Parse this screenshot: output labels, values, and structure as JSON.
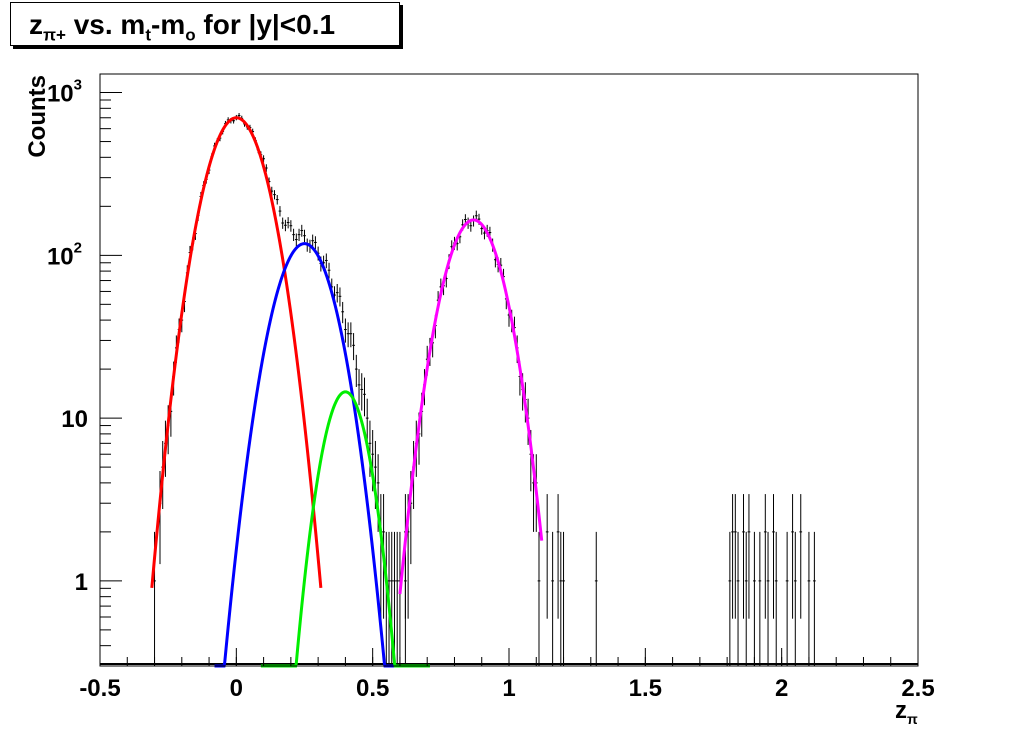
{
  "chart_data": {
    "type": "line",
    "title_parts": {
      "z": "z",
      "z_sub": "π+",
      "vs": " vs. m",
      "t_sub": "t",
      "dash": "-m",
      "o_sub": "o",
      "rest": " for |y|<0.1"
    },
    "xlabel": "z",
    "xlabel_sub": "π",
    "ylabel": "Counts",
    "xlim": [
      -0.5,
      2.5
    ],
    "ylim": [
      0.3,
      1300
    ],
    "yscale": "log",
    "x_ticks": [
      {
        "v": -0.5,
        "label": "-0.5"
      },
      {
        "v": 0,
        "label": "0"
      },
      {
        "v": 0.5,
        "label": "0.5"
      },
      {
        "v": 1,
        "label": "1"
      },
      {
        "v": 1.5,
        "label": "1.5"
      },
      {
        "v": 2,
        "label": "2"
      },
      {
        "v": 2.5,
        "label": "2.5"
      }
    ],
    "y_ticks": [
      {
        "v": 1,
        "base": "1",
        "exp": ""
      },
      {
        "v": 10,
        "base": "10",
        "exp": ""
      },
      {
        "v": 100,
        "base": "10",
        "exp": "2"
      },
      {
        "v": 1000,
        "base": "10",
        "exp": "3"
      }
    ],
    "fits": [
      {
        "color": "#ff0000",
        "amplitude": 700,
        "mean": 0.0,
        "sigma": 0.085,
        "range": [
          -0.31,
          0.31
        ]
      },
      {
        "color": "#0000ff",
        "amplitude": 118,
        "mean": 0.25,
        "sigma": 0.085,
        "range": [
          -0.08,
          0.6
        ]
      },
      {
        "color": "#00ee00",
        "amplitude": 14.5,
        "mean": 0.4,
        "sigma": 0.065,
        "range": [
          0.09,
          0.71
        ]
      },
      {
        "color": "#ff00ff",
        "amplitude": 165,
        "mean": 0.87,
        "sigma": 0.083,
        "range": [
          0.6,
          1.12
        ]
      }
    ],
    "histogram": {
      "color": "#000000",
      "bin_width": 0.01,
      "sparse_bins": [
        {
          "x": -0.3,
          "y": 1
        },
        {
          "x": 0.62,
          "y": 1
        },
        {
          "x": 1.11,
          "y": 1
        },
        {
          "x": 1.14,
          "y": 2
        },
        {
          "x": 1.16,
          "y": 1
        },
        {
          "x": 1.18,
          "y": 2
        },
        {
          "x": 1.19,
          "y": 1
        },
        {
          "x": 1.2,
          "y": 1
        },
        {
          "x": 1.32,
          "y": 1
        },
        {
          "x": 1.81,
          "y": 1
        },
        {
          "x": 1.82,
          "y": 2
        },
        {
          "x": 1.83,
          "y": 2
        },
        {
          "x": 1.84,
          "y": 1
        },
        {
          "x": 1.86,
          "y": 2
        },
        {
          "x": 1.87,
          "y": 1
        },
        {
          "x": 1.88,
          "y": 2
        },
        {
          "x": 1.9,
          "y": 1
        },
        {
          "x": 1.92,
          "y": 1
        },
        {
          "x": 1.94,
          "y": 2
        },
        {
          "x": 1.95,
          "y": 1
        },
        {
          "x": 1.97,
          "y": 2
        },
        {
          "x": 1.98,
          "y": 1
        },
        {
          "x": 2.02,
          "y": 1
        },
        {
          "x": 2.04,
          "y": 2
        },
        {
          "x": 2.05,
          "y": 1
        },
        {
          "x": 2.07,
          "y": 2
        },
        {
          "x": 2.1,
          "y": 1
        },
        {
          "x": 2.12,
          "y": 1
        }
      ],
      "dense_ranges": [
        [
          -0.28,
          0.6
        ],
        [
          0.62,
          1.1
        ]
      ]
    }
  }
}
